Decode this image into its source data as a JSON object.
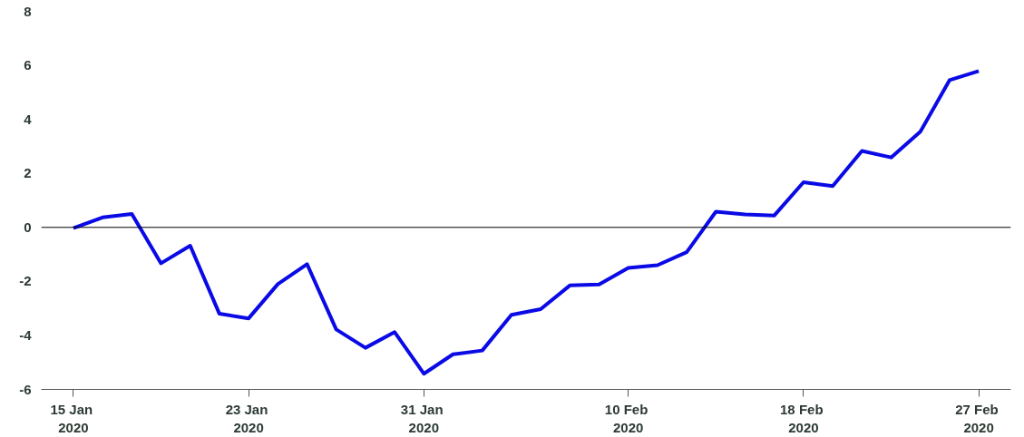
{
  "chart_data": {
    "type": "line",
    "categories": [
      "15  Jan\n2020",
      null,
      null,
      null,
      null,
      null,
      "23  Jan\n2020",
      null,
      null,
      null,
      null,
      null,
      "31  Jan\n2020",
      null,
      null,
      null,
      null,
      null,
      null,
      "10  Feb\n2020",
      null,
      null,
      null,
      null,
      null,
      "18  Feb\n2020",
      null,
      null,
      null,
      null,
      null,
      "27  Feb\n2020"
    ],
    "series": [
      {
        "color": "#0a0ae6",
        "values": [
          -0.03,
          0.37,
          0.5,
          -1.33,
          -0.68,
          -3.2,
          -3.37,
          -2.1,
          -1.36,
          -3.78,
          -4.46,
          -3.88,
          -5.42,
          -4.7,
          -4.56,
          -3.24,
          -3.03,
          -2.15,
          -2.11,
          -1.5,
          -1.4,
          -0.92,
          0.58,
          0.48,
          0.44,
          1.67,
          1.53,
          2.83,
          2.59,
          3.54,
          5.45,
          5.79
        ]
      }
    ],
    "ylim": [
      -6,
      8
    ],
    "yticks": [
      -6,
      -4,
      -2,
      0,
      2,
      4,
      6,
      8
    ],
    "ref_lines": [
      {
        "axis": "y",
        "value": 0,
        "color": "#000000"
      }
    ],
    "grid": false,
    "marker": "none",
    "line_style": "solid"
  }
}
